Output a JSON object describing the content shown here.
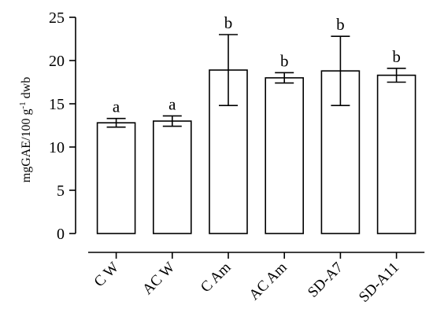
{
  "chart_data": {
    "type": "bar",
    "title": "",
    "ylabel": {
      "pre": "mgGAE/100 g",
      "sup": "-1",
      "post": " dwb"
    },
    "xlabel": "",
    "ylim": [
      0,
      25
    ],
    "yticks": [
      0,
      5,
      10,
      15,
      20,
      25
    ],
    "categories": [
      "C W",
      "AC W",
      "C Am",
      "AC Am",
      "SD-A7",
      "SD-A11"
    ],
    "values": [
      12.8,
      13.0,
      18.9,
      18.0,
      18.8,
      18.3
    ],
    "errors": [
      0.5,
      0.6,
      4.1,
      0.6,
      4.0,
      0.8
    ],
    "significance": [
      "a",
      "a",
      "b",
      "b",
      "b",
      "b"
    ],
    "grid": false,
    "legend": "none"
  }
}
